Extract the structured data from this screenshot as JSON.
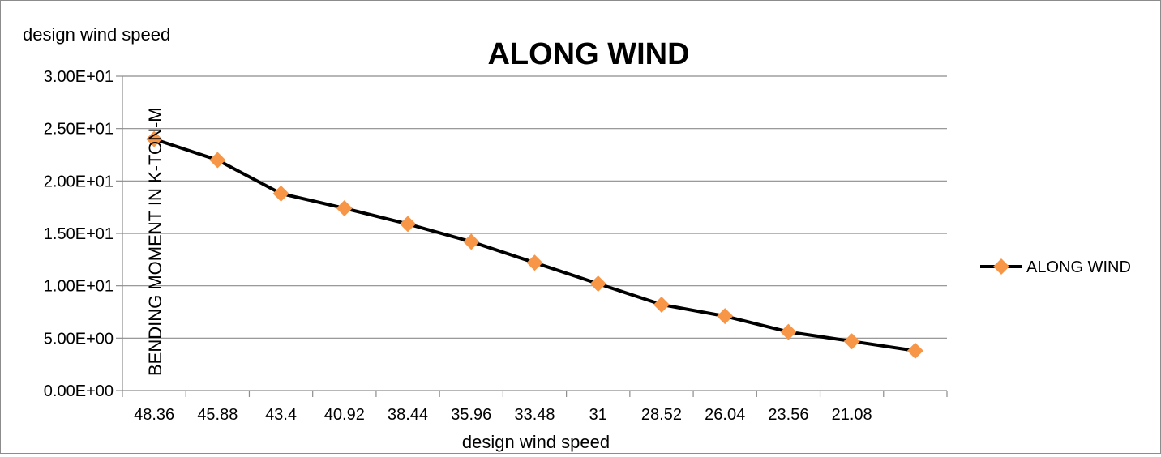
{
  "chart_data": {
    "type": "line",
    "title": "ALONG WIND",
    "xlabel": "design wind speed",
    "ylabel": "BENDING MOMENT IN K-TON-M",
    "corner_label": "design wind speed",
    "categories": [
      "48.36",
      "45.88",
      "43.4",
      "40.92",
      "38.44",
      "35.96",
      "33.48",
      "31",
      "28.52",
      "26.04",
      "23.56",
      "21.08",
      ""
    ],
    "series": [
      {
        "name": "ALONG WIND",
        "values": [
          24.0,
          22.0,
          18.8,
          17.4,
          15.9,
          14.2,
          12.2,
          10.2,
          8.2,
          7.1,
          5.6,
          4.7,
          3.8
        ]
      }
    ],
    "ylim": [
      0,
      30
    ],
    "yticks": [
      0,
      5,
      10,
      15,
      20,
      25,
      30
    ],
    "ytick_labels": [
      "0.00E+00",
      "5.00E+00",
      "1.00E+01",
      "1.50E+01",
      "2.00E+01",
      "2.50E+01",
      "3.00E+01"
    ],
    "grid": true,
    "legend_position": "right",
    "line_color": "#000000",
    "marker_color": "#F79646",
    "marker": "diamond"
  }
}
